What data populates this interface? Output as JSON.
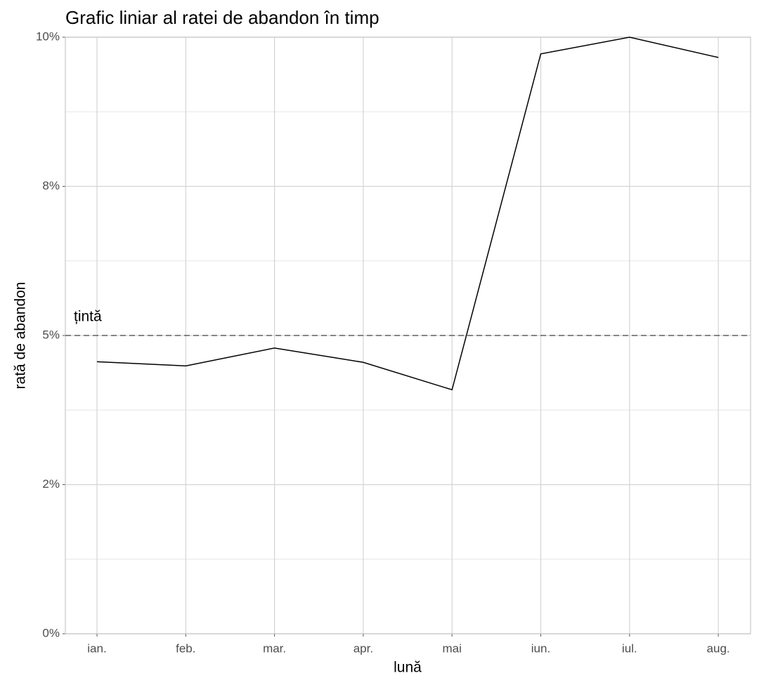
{
  "chart_data": {
    "type": "line",
    "title": "Grafic liniar al ratei de abandon în timp",
    "x_label": "lună",
    "y_label": "rată de abandon",
    "categories": [
      "ian.",
      "feb.",
      "mar.",
      "apr.",
      "mai",
      "iun.",
      "iul.",
      "aug."
    ],
    "series": [
      {
        "name": "rată de abandon",
        "color": "#000000",
        "values": [
          4.56,
          4.49,
          4.79,
          4.55,
          4.09,
          9.72,
          10.0,
          9.66
        ]
      }
    ],
    "ylim": [
      0,
      10
    ],
    "yticks": [
      {
        "value": 0,
        "label": "0%"
      },
      {
        "value": 2.5,
        "label": "2%"
      },
      {
        "value": 5,
        "label": "5%"
      },
      {
        "value": 7.5,
        "label": "8%"
      },
      {
        "value": 10,
        "label": "10%"
      }
    ],
    "minor_yticks": [
      1.25,
      3.75,
      6.25,
      8.75
    ],
    "grid": true,
    "target": {
      "value": 5,
      "label": "țintă",
      "color": "#444444"
    }
  }
}
